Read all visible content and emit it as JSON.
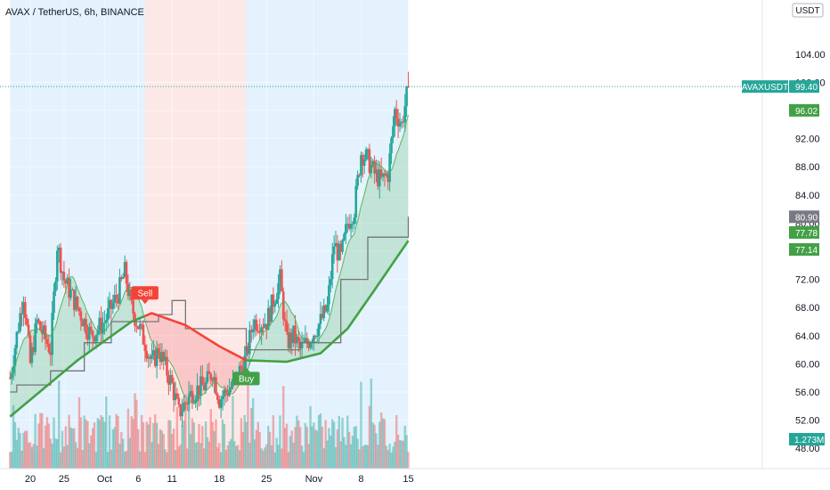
{
  "header": {
    "title": "AVAX / TetherUS, 6h, BINANCE",
    "currency": "USDT"
  },
  "colors": {
    "up": "#26a69a",
    "down": "#ef5350",
    "bg_blue": "#e3f2fd",
    "bg_red": "#fde8e8",
    "ma_green": "#43a047",
    "ma_red": "#f44336",
    "ma_orange": "#ff9800",
    "step_line": "#757575",
    "label_gray": "#787b86"
  },
  "price_labels": [
    {
      "name": "avaxusdt-last",
      "symbol": "AVAXUSDT",
      "value": "99.40",
      "price": 99.4,
      "color": "#26a69a"
    },
    {
      "name": "ma-fast",
      "value": "96.02",
      "price": 96.02,
      "color": "#43a047"
    },
    {
      "name": "step-line",
      "value": "80.90",
      "price": 80.9,
      "color": "#787b86"
    },
    {
      "name": "ma-mid",
      "value": "77.78",
      "price": 77.78,
      "color": "#43a047"
    },
    {
      "name": "ma-slow",
      "value": "77.14",
      "price": 77.14,
      "color": "#43a047"
    }
  ],
  "volume_label": "1.273M",
  "signals": [
    {
      "name": "sell-signal",
      "label": "Sell",
      "date": "Oct 7",
      "price": 68.5,
      "color": "#f44336"
    },
    {
      "name": "buy-signal",
      "label": "Buy",
      "date": "Oct 22",
      "price": 59.5,
      "color": "#43a047"
    }
  ],
  "chart_data": {
    "type": "candlestick",
    "interval": "6h",
    "x_ticks": [
      "20",
      "25",
      "Oct",
      "6",
      "11",
      "18",
      "25",
      "Nov",
      "8",
      "15"
    ],
    "y_ticks": [
      "104.00",
      "100.00",
      "96.00",
      "92.00",
      "88.00",
      "84.00",
      "80.00",
      "76.00",
      "72.00",
      "68.00",
      "64.00",
      "60.00",
      "56.00",
      "52.00",
      "48.00"
    ],
    "ylim": [
      45.5,
      105.5
    ],
    "regions": [
      {
        "from": "Sep 17",
        "to": "Oct 7",
        "trend": "bullish"
      },
      {
        "from": "Oct 7",
        "to": "Oct 22",
        "trend": "bearish"
      },
      {
        "from": "Oct 22",
        "to": "Nov 15",
        "trend": "bullish"
      }
    ],
    "price_path": [
      {
        "date": "Sep 17",
        "price": 58
      },
      {
        "date": "Sep 19",
        "price": 70
      },
      {
        "date": "Sep 20",
        "price": 60
      },
      {
        "date": "Sep 21",
        "price": 66
      },
      {
        "date": "Sep 23",
        "price": 62
      },
      {
        "date": "Sep 24",
        "price": 77
      },
      {
        "date": "Sep 25",
        "price": 72
      },
      {
        "date": "Sep 27",
        "price": 68
      },
      {
        "date": "Sep 29",
        "price": 64
      },
      {
        "date": "Oct 1",
        "price": 66
      },
      {
        "date": "Oct 3",
        "price": 70
      },
      {
        "date": "Oct 4",
        "price": 73
      },
      {
        "date": "Oct 5",
        "price": 68
      },
      {
        "date": "Oct 7",
        "price": 63
      },
      {
        "date": "Oct 8",
        "price": 60
      },
      {
        "date": "Oct 9",
        "price": 62
      },
      {
        "date": "Oct 11",
        "price": 57
      },
      {
        "date": "Oct 12",
        "price": 53
      },
      {
        "date": "Oct 14",
        "price": 56
      },
      {
        "date": "Oct 16",
        "price": 57
      },
      {
        "date": "Oct 17",
        "price": 59
      },
      {
        "date": "Oct 18",
        "price": 55
      },
      {
        "date": "Oct 20",
        "price": 57
      },
      {
        "date": "Oct 21",
        "price": 59
      },
      {
        "date": "Oct 22",
        "price": 61
      },
      {
        "date": "Oct 23",
        "price": 66
      },
      {
        "date": "Oct 25",
        "price": 66
      },
      {
        "date": "Oct 27",
        "price": 72
      },
      {
        "date": "Oct 28",
        "price": 63
      },
      {
        "date": "Oct 29",
        "price": 64
      },
      {
        "date": "Oct 30",
        "price": 62
      },
      {
        "date": "Oct 31",
        "price": 63
      },
      {
        "date": "Nov 2",
        "price": 66
      },
      {
        "date": "Nov 3",
        "price": 68
      },
      {
        "date": "Nov 4",
        "price": 77
      },
      {
        "date": "Nov 5",
        "price": 75
      },
      {
        "date": "Nov 6",
        "price": 80
      },
      {
        "date": "Nov 7",
        "price": 82
      },
      {
        "date": "Nov 8",
        "price": 90
      },
      {
        "date": "Nov 9",
        "price": 89
      },
      {
        "date": "Nov 10",
        "price": 87
      },
      {
        "date": "Nov 11",
        "price": 86
      },
      {
        "date": "Nov 12",
        "price": 87
      },
      {
        "date": "Nov 13",
        "price": 96
      },
      {
        "date": "Nov 14",
        "price": 94
      },
      {
        "date": "Nov 15",
        "price": 99.4
      }
    ],
    "series": [
      {
        "name": "ma-fast-line",
        "values_ref": "smoothed price"
      },
      {
        "name": "ma-slow-line",
        "points": [
          {
            "date": "Sep 17",
            "price": 52.5
          },
          {
            "date": "Sep 27",
            "price": 60.5
          },
          {
            "date": "Oct 5",
            "price": 66
          },
          {
            "date": "Oct 8",
            "price": 67.2
          },
          {
            "date": "Oct 13",
            "price": 65.5
          },
          {
            "date": "Oct 18",
            "price": 62.5
          },
          {
            "date": "Oct 22",
            "price": 60.5
          },
          {
            "date": "Oct 28",
            "price": 60.3
          },
          {
            "date": "Nov 2",
            "price": 61.5
          },
          {
            "date": "Nov 6",
            "price": 65
          },
          {
            "date": "Nov 10",
            "price": 70.5
          },
          {
            "date": "Nov 15",
            "price": 77.5
          }
        ]
      },
      {
        "name": "step-line",
        "points": [
          {
            "date": "Sep 17",
            "price": 56
          },
          {
            "date": "Sep 18",
            "price": 57
          },
          {
            "date": "Sep 23",
            "price": 59
          },
          {
            "date": "Sep 28",
            "price": 63
          },
          {
            "date": "Oct 2",
            "price": 66
          },
          {
            "date": "Oct 9",
            "price": 67
          },
          {
            "date": "Oct 11",
            "price": 69
          },
          {
            "date": "Oct 13",
            "price": 65
          },
          {
            "date": "Oct 22",
            "price": 62
          },
          {
            "date": "Oct 30",
            "price": 63
          },
          {
            "date": "Nov 5",
            "price": 72
          },
          {
            "date": "Nov 9",
            "price": 78
          },
          {
            "date": "Nov 15",
            "price": 80.9
          }
        ]
      }
    ],
    "volume": {
      "last": "1.273M"
    }
  }
}
